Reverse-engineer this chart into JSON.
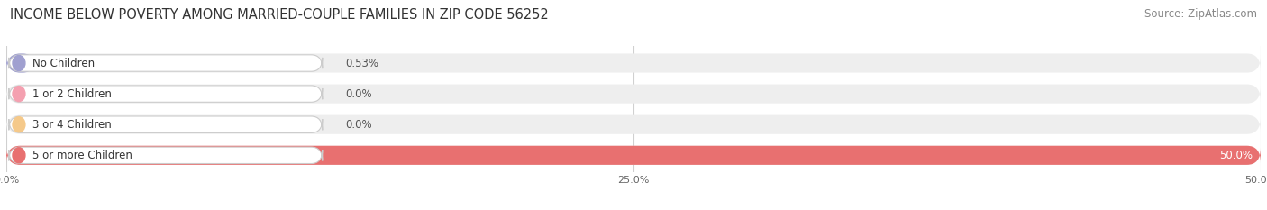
{
  "title": "INCOME BELOW POVERTY AMONG MARRIED-COUPLE FAMILIES IN ZIP CODE 56252",
  "source": "Source: ZipAtlas.com",
  "categories": [
    "No Children",
    "1 or 2 Children",
    "3 or 4 Children",
    "5 or more Children"
  ],
  "values": [
    0.53,
    0.0,
    0.0,
    50.0
  ],
  "bar_colors": [
    "#a0a0d0",
    "#f4a0b0",
    "#f5c98a",
    "#e87070"
  ],
  "bar_bg_color": "#eeeeee",
  "xlim": [
    0,
    50.0
  ],
  "xticks": [
    0.0,
    25.0,
    50.0
  ],
  "xtick_labels": [
    "0.0%",
    "25.0%",
    "50.0%"
  ],
  "title_fontsize": 10.5,
  "source_fontsize": 8.5,
  "label_fontsize": 8.5,
  "value_fontsize": 8.5,
  "background_color": "#ffffff",
  "grid_color": "#d0d0d0",
  "value_strings": [
    "0.53%",
    "0.0%",
    "0.0%",
    "50.0%"
  ]
}
